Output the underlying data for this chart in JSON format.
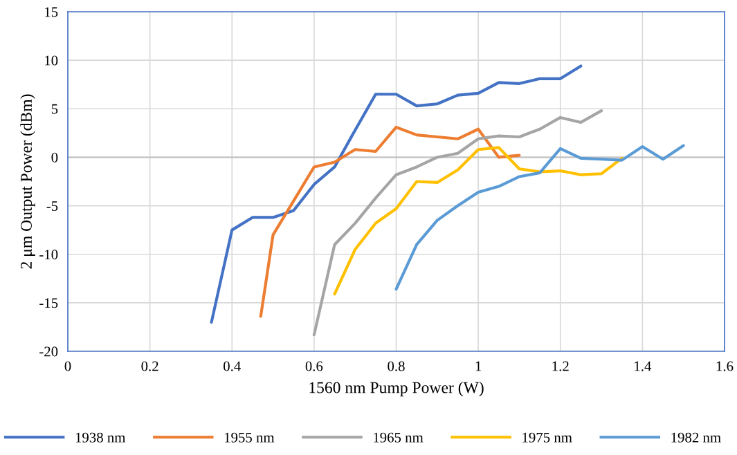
{
  "chart_data": {
    "type": "line",
    "xlabel": "1560 nm Pump Power (W)",
    "ylabel": "2 μm Output Power (dBm)",
    "xlim": [
      0,
      1.6
    ],
    "xticks": [
      0,
      0.2,
      0.4,
      0.6,
      0.8,
      1,
      1.2,
      1.4,
      1.6
    ],
    "ylim": [
      -20,
      15
    ],
    "yticks": [
      -20,
      -15,
      -10,
      -5,
      0,
      5,
      10,
      15
    ],
    "grid": true,
    "legend": "bottom",
    "marker": "none",
    "line_style": "solid",
    "ref_lines": [
      {
        "axis": "y",
        "value": 0,
        "color": "#bfbfbf"
      }
    ],
    "series": [
      {
        "name": "1938 nm",
        "color": "#4472c4",
        "x": [
          0.35,
          0.4,
          0.45,
          0.5,
          0.55,
          0.6,
          0.65,
          0.7,
          0.75,
          0.8,
          0.85,
          0.9,
          0.95,
          1.0,
          1.05,
          1.1,
          1.15,
          1.2,
          1.25
        ],
        "values": [
          -17,
          -7.5,
          -6.2,
          -6.2,
          -5.5,
          -2.8,
          -1.0,
          2.8,
          6.5,
          6.5,
          5.3,
          5.5,
          6.4,
          6.6,
          7.7,
          7.6,
          8.1,
          8.1,
          9.4
        ]
      },
      {
        "name": "1955 nm",
        "color": "#ed7d31",
        "x": [
          0.47,
          0.5,
          0.55,
          0.6,
          0.65,
          0.7,
          0.75,
          0.8,
          0.85,
          0.9,
          0.95,
          1.0,
          1.05,
          1.1
        ],
        "values": [
          -16.4,
          -8.0,
          -4.5,
          -1.0,
          -0.5,
          0.8,
          0.6,
          3.1,
          2.3,
          2.1,
          1.9,
          2.9,
          0.0,
          0.2
        ]
      },
      {
        "name": "1965 nm",
        "color": "#a5a5a5",
        "x": [
          0.6,
          0.65,
          0.7,
          0.75,
          0.8,
          0.85,
          0.9,
          0.95,
          1.0,
          1.05,
          1.1,
          1.15,
          1.2,
          1.25,
          1.3
        ],
        "values": [
          -18.3,
          -9.0,
          -6.8,
          -4.2,
          -1.8,
          -1.0,
          0.0,
          0.4,
          1.9,
          2.2,
          2.1,
          2.9,
          4.1,
          3.6,
          4.8
        ]
      },
      {
        "name": "1975 nm",
        "color": "#ffc000",
        "x": [
          0.65,
          0.7,
          0.75,
          0.8,
          0.85,
          0.9,
          0.95,
          1.0,
          1.05,
          1.1,
          1.15,
          1.2,
          1.25,
          1.3,
          1.35
        ],
        "values": [
          -14.1,
          -9.5,
          -6.8,
          -5.3,
          -2.5,
          -2.6,
          -1.3,
          0.8,
          1.0,
          -1.2,
          -1.5,
          -1.4,
          -1.8,
          -1.7,
          -0.1
        ]
      },
      {
        "name": "1982 nm",
        "color": "#5b9bd5",
        "x": [
          0.8,
          0.85,
          0.9,
          0.95,
          1.0,
          1.05,
          1.1,
          1.15,
          1.2,
          1.25,
          1.3,
          1.35,
          1.4,
          1.45,
          1.5
        ],
        "values": [
          -13.6,
          -9.0,
          -6.5,
          -5.0,
          -3.6,
          -3.0,
          -2.0,
          -1.6,
          0.9,
          -0.1,
          -0.2,
          -0.3,
          1.1,
          -0.2,
          1.2
        ]
      }
    ]
  }
}
